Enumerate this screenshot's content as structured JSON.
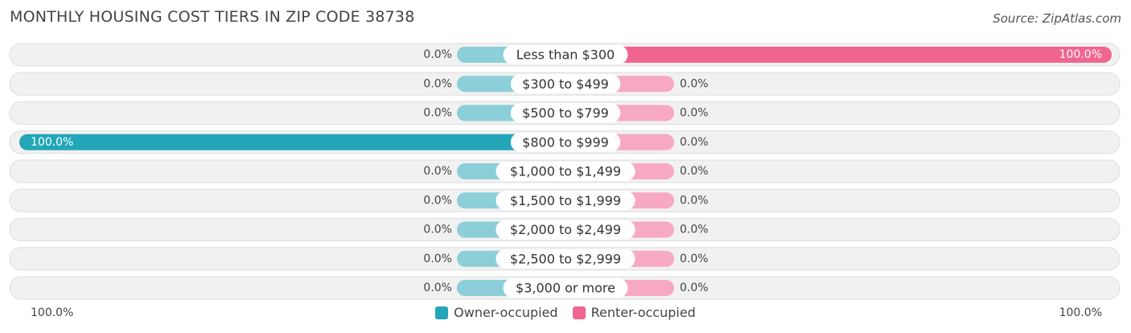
{
  "title": "MONTHLY HOUSING COST TIERS IN ZIP CODE 38738",
  "source": "Source: ZipAtlas.com",
  "colors": {
    "owner": "#22a6b8",
    "owner_light": "#8ccfd8",
    "renter": "#f06690",
    "renter_light": "#f7a9c2",
    "track": "#f1f1f1",
    "track_border": "#dddddd"
  },
  "legend": {
    "owner_label": "Owner-occupied",
    "renter_label": "Renter-occupied"
  },
  "axis": {
    "left_label": "100.0%",
    "right_label": "100.0%"
  },
  "chart_data": {
    "type": "bar",
    "orientation": "diverging-horizontal",
    "categories": [
      "Less than $300",
      "$300 to $499",
      "$500 to $799",
      "$800 to $999",
      "$1,000 to $1,499",
      "$1,500 to $1,999",
      "$2,000 to $2,499",
      "$2,500 to $2,999",
      "$3,000 or more"
    ],
    "series": [
      {
        "name": "Owner-occupied",
        "values": [
          0.0,
          0.0,
          0.0,
          100.0,
          0.0,
          0.0,
          0.0,
          0.0,
          0.0
        ],
        "labels": [
          "0.0%",
          "0.0%",
          "0.0%",
          "100.0%",
          "0.0%",
          "0.0%",
          "0.0%",
          "0.0%",
          "0.0%"
        ]
      },
      {
        "name": "Renter-occupied",
        "values": [
          100.0,
          0.0,
          0.0,
          0.0,
          0.0,
          0.0,
          0.0,
          0.0,
          0.0
        ],
        "labels": [
          "100.0%",
          "0.0%",
          "0.0%",
          "0.0%",
          "0.0%",
          "0.0%",
          "0.0%",
          "0.0%",
          "0.0%"
        ]
      }
    ],
    "xlim": [
      0,
      100
    ],
    "legend_position": "bottom-center"
  }
}
